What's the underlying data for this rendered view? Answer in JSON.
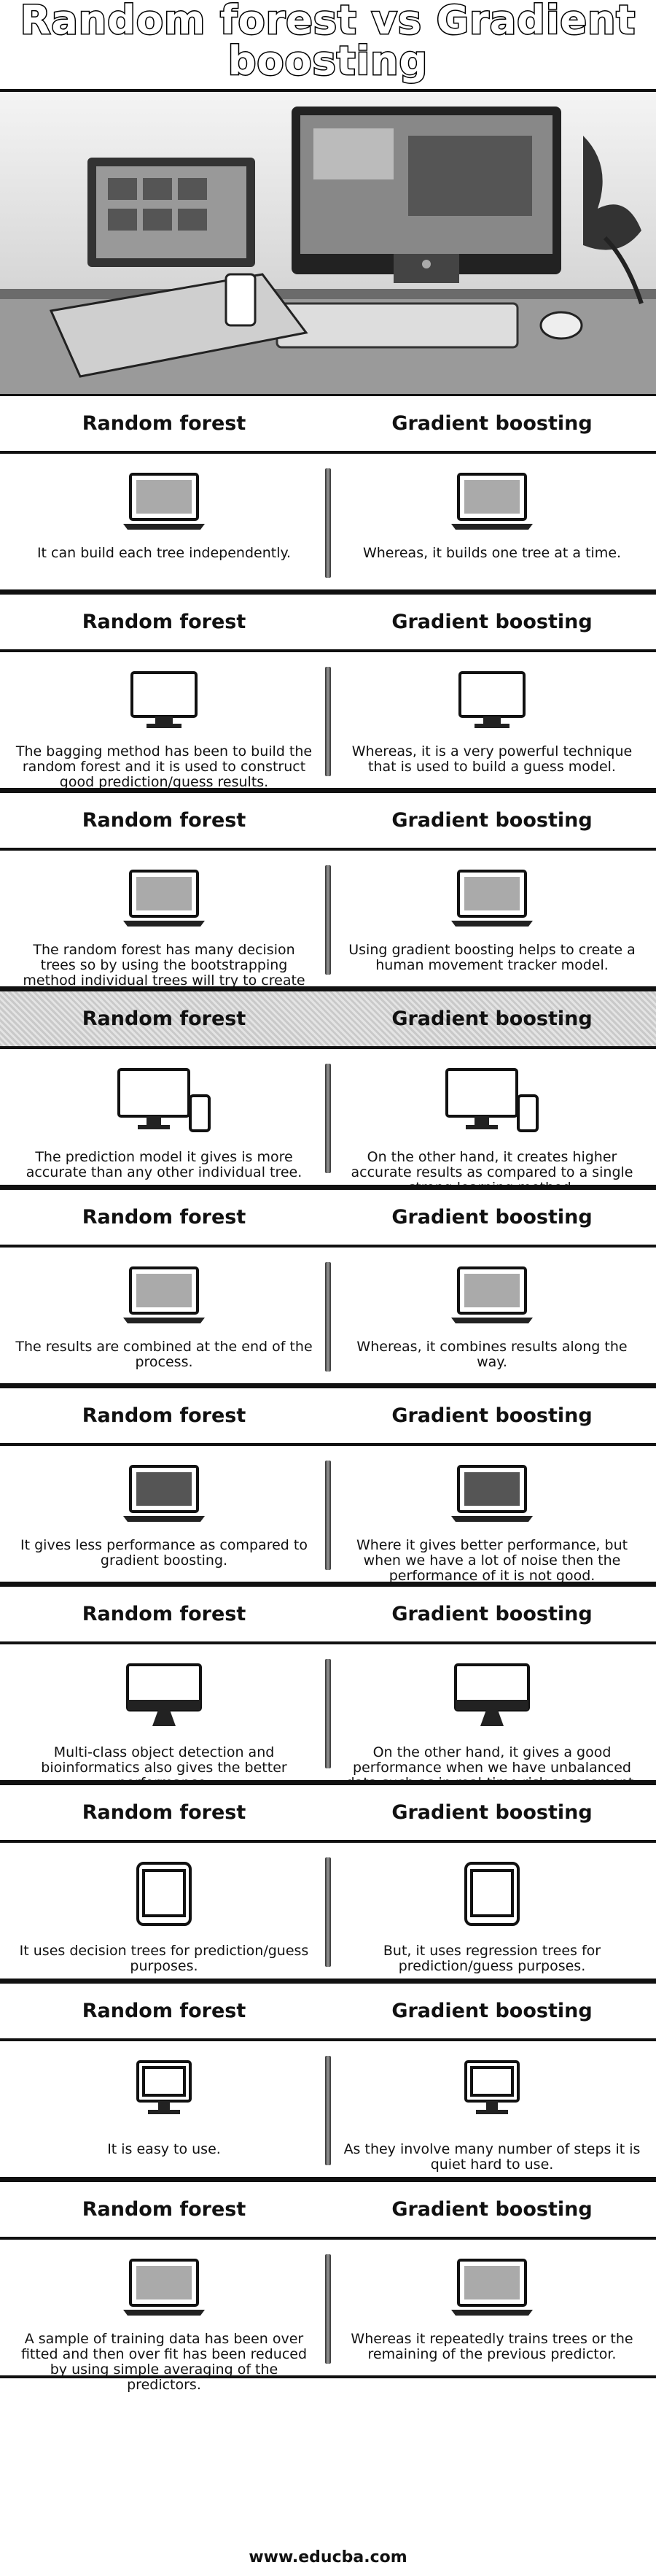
{
  "title": {
    "line1": "Random forest vs Gradient",
    "line2": "boosting"
  },
  "hero": {
    "description_icon": "laptop-and-desktop-computer-photo"
  },
  "column_left": "Random forest",
  "column_right": "Gradient boosting",
  "rows": [
    {
      "icon": "laptop-icon",
      "dark": false,
      "left": "It can build each tree independently.",
      "right": "Whereas, it builds one tree at a time."
    },
    {
      "icon": "monitor-outline-icon",
      "dark": false,
      "left": "The bagging method has been to build the random forest and it is used to construct good prediction/guess results.",
      "right": "Whereas, it is a very powerful technique that is used to build a guess model."
    },
    {
      "icon": "laptop-icon",
      "dark": false,
      "left": "The random forest has many decision trees so by using the bootstrapping method individual trees will try to create an uncorrelated forest of trees.",
      "right": "Using gradient boosting helps to create a human movement tracker model."
    },
    {
      "icon": "desktop-phone-icon",
      "dark": true,
      "left": "The prediction model it gives is more accurate than any other individual tree.",
      "right": "On the other hand, it creates higher accurate results as compared to a single strong learning method."
    },
    {
      "icon": "laptop-icon",
      "dark": false,
      "left": "The results are combined at the end of the process.",
      "right": "Whereas, it combines results along the way."
    },
    {
      "icon": "laptop-dark-icon",
      "dark": false,
      "left": "It gives less performance as compared to gradient boosting.",
      "right": "Where it gives better performance, but when we have a lot of noise then the performance of it is not good."
    },
    {
      "icon": "imac-icon",
      "dark": false,
      "left": "Multi-class object detection and bioinformatics also gives the better performance.",
      "right": "On the other hand, it gives a good performance when we have unbalanced data such as in real-time risk assessment."
    },
    {
      "icon": "tablet-icon",
      "dark": false,
      "left": "It uses decision trees for prediction/guess purposes.",
      "right": "But, it uses regression trees for prediction/guess purposes."
    },
    {
      "icon": "desktop-outline-icon",
      "dark": false,
      "left": "It is easy to use.",
      "right": "As they involve many number of steps it is quiet hard to use."
    },
    {
      "icon": "laptop-icon",
      "dark": false,
      "left": "A sample of training data has been over fitted and then over fit has been reduced by using simple averaging of the predictors.",
      "right": "Whereas it repeatedly trains trees or the remaining of the previous predictor."
    }
  ],
  "footer": "www.educba.com"
}
